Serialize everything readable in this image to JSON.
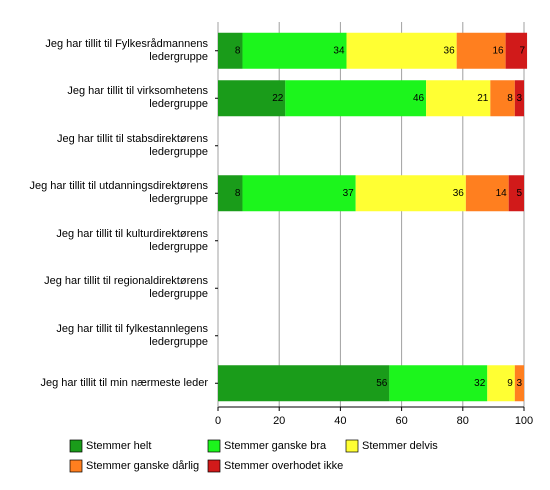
{
  "chart_data": {
    "type": "stacked-barh",
    "categories": [
      "Jeg har tillit til Fylkesrådmannens ledergruppe",
      "Jeg har tillit til virksomhetens ledergruppe",
      "Jeg har tillit til stabsdirektørens ledergruppe",
      "Jeg har tillit til utdanningsdirektørens ledergruppe",
      "Jeg har tillit til kulturdirektørens ledergruppe",
      "Jeg har tillit til regionaldirektørens ledergruppe",
      "Jeg har tillit til fylkestannlegens ledergruppe",
      "Jeg har tillit til min nærmeste leder"
    ],
    "series": [
      {
        "name": "Stemmer helt",
        "color": "#1a9c1a",
        "values": [
          8,
          22,
          null,
          8,
          null,
          null,
          null,
          56
        ]
      },
      {
        "name": "Stemmer ganske bra",
        "color": "#1cf51c",
        "values": [
          34,
          46,
          null,
          37,
          null,
          null,
          null,
          32
        ]
      },
      {
        "name": "Stemmer delvis",
        "color": "#ffff33",
        "values": [
          36,
          21,
          null,
          36,
          null,
          null,
          null,
          9
        ]
      },
      {
        "name": "Stemmer ganske dårlig",
        "color": "#ff7f1f",
        "values": [
          16,
          8,
          null,
          14,
          null,
          null,
          null,
          3
        ]
      },
      {
        "name": "Stemmer overhodet ikke",
        "color": "#d11a1a",
        "values": [
          7,
          3,
          null,
          5,
          null,
          null,
          null,
          null
        ]
      }
    ],
    "xlim": [
      0,
      100
    ],
    "xticks": [
      0,
      20,
      40,
      60,
      80,
      100
    ],
    "grid": true
  }
}
